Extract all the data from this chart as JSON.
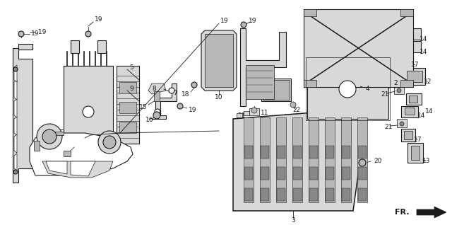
{
  "bg_color": "#ffffff",
  "line_color": "#1a1a1a",
  "fig_width": 6.4,
  "fig_height": 3.18,
  "dpi": 100,
  "gray_light": "#d8d8d8",
  "gray_mid": "#b8b8b8",
  "gray_dark": "#888888",
  "gray_fill": "#e8e8e8",
  "label_fontsize": 6.5,
  "lw_main": 0.8,
  "lw_thin": 0.5,
  "lw_leader": 0.6
}
